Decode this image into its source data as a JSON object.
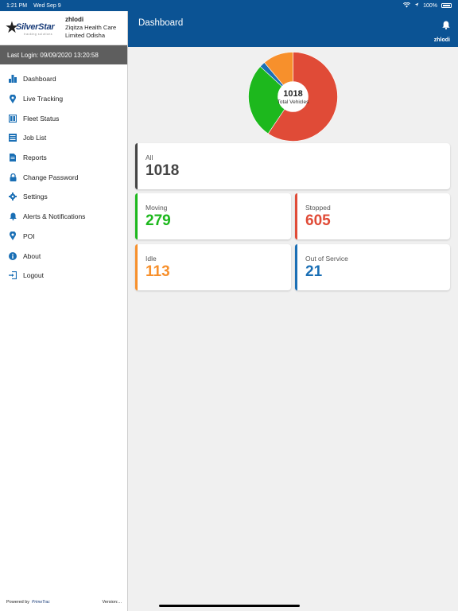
{
  "status_bar": {
    "time": "1:21 PM",
    "date": "Wed Sep 9",
    "battery": "100%"
  },
  "profile": {
    "logo_text": "SilverStar",
    "logo_tagline": "tracking solutions",
    "username": "zhlodi",
    "org_line1": "Ziqitza Health Care",
    "org_line2": "Limited Odisha"
  },
  "last_login": "Last Login: 09/09/2020 13:20:58",
  "menu": [
    {
      "label": "Dashboard",
      "icon": "dashboard-icon"
    },
    {
      "label": "Live Tracking",
      "icon": "map-pin-icon"
    },
    {
      "label": "Fleet Status",
      "icon": "fleet-icon"
    },
    {
      "label": "Job List",
      "icon": "list-icon"
    },
    {
      "label": "Reports",
      "icon": "document-icon"
    },
    {
      "label": "Change Password",
      "icon": "lock-icon"
    },
    {
      "label": "Settings",
      "icon": "gear-icon"
    },
    {
      "label": "Alerts & Notifications",
      "icon": "bell-icon"
    },
    {
      "label": "POI",
      "icon": "map-pin-icon"
    },
    {
      "label": "About",
      "icon": "info-icon"
    },
    {
      "label": "Logout",
      "icon": "logout-icon"
    }
  ],
  "footer": {
    "powered_by": "Powered by",
    "vendor": "PrimeTrac",
    "version": "Version:..."
  },
  "header": {
    "title": "Dashboard",
    "username": "zhlodi"
  },
  "chart_data": {
    "type": "pie",
    "center_value": "1018",
    "center_label": "Total Vehicles",
    "categories": [
      "Stopped",
      "Moving",
      "Out of Service",
      "Idle"
    ],
    "values": [
      605,
      279,
      21,
      113
    ],
    "colors": [
      "#e04b37",
      "#1db81d",
      "#1a6fb5",
      "#f7902c"
    ]
  },
  "cards": {
    "all": {
      "label": "All",
      "value": "1018",
      "color": "#444444"
    },
    "moving": {
      "label": "Moving",
      "value": "279",
      "color": "#1db81d"
    },
    "stopped": {
      "label": "Stopped",
      "value": "605",
      "color": "#e04b37"
    },
    "idle": {
      "label": "Idle",
      "value": "113",
      "color": "#f7902c"
    },
    "out_of_service": {
      "label": "Out of Service",
      "value": "21",
      "color": "#1a6fb5"
    }
  },
  "colors": {
    "primary": "#0b5394",
    "icon": "#1a6fb5"
  }
}
